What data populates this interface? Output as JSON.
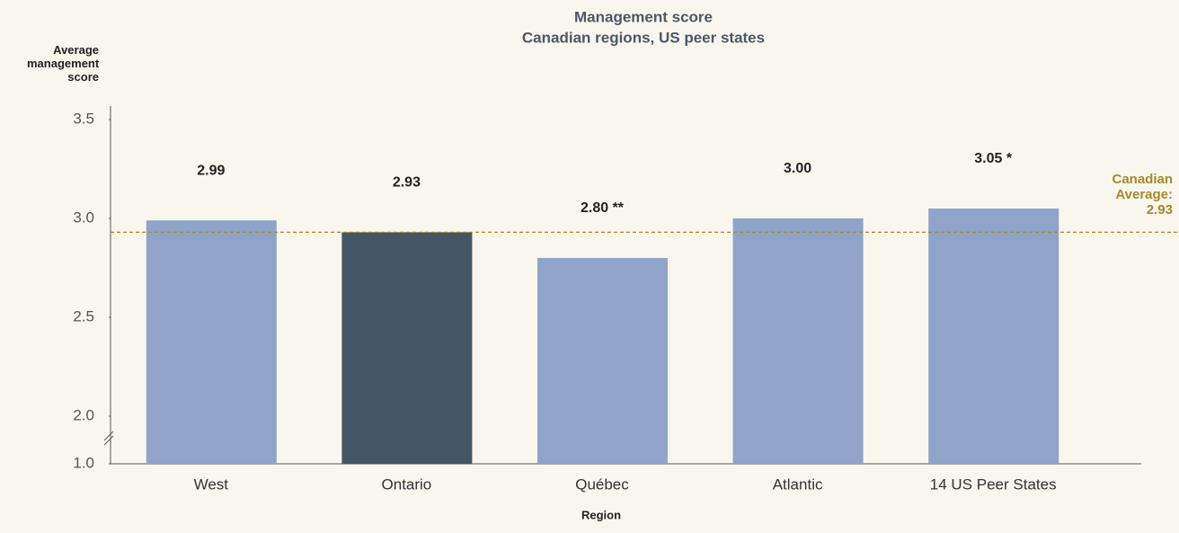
{
  "chart_data": {
    "type": "bar",
    "title": "Management score",
    "subtitle": "Canadian regions, US peer states",
    "y_label": "Average management score",
    "x_label": "Region",
    "categories": [
      "West",
      "Ontario",
      "Québec",
      "Atlantic",
      "14 US Peer States"
    ],
    "values": [
      2.99,
      2.93,
      2.8,
      3.0,
      3.05
    ],
    "value_labels": [
      "2.99",
      "2.93",
      "2.80 **",
      "3.00",
      "3.05 *"
    ],
    "colors": [
      "#90a3c9",
      "#445663",
      "#90a3c9",
      "#90a3c9",
      "#90a3c9"
    ],
    "ylim": [
      1.0,
      3.5
    ],
    "yticks": [
      {
        "value": 1.0,
        "label": "1.0"
      },
      {
        "value": 2.0,
        "label": "2.0"
      },
      2.5,
      {
        "value": 3.0,
        "label": "3.0"
      },
      3.5
    ],
    "axis_break": true,
    "reference_line": {
      "value": 2.93,
      "label": [
        "Canadian",
        "Average:"
      ],
      "color": "#a38a2c"
    }
  }
}
